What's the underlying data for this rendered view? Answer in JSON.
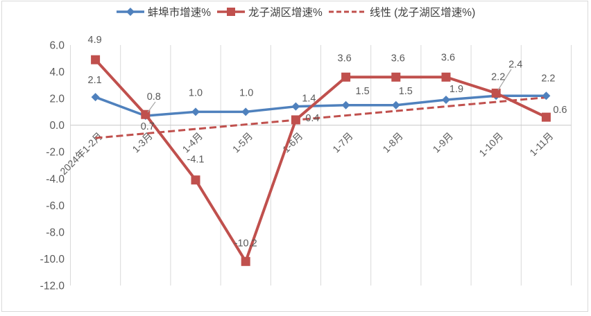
{
  "chart_data": {
    "type": "line",
    "title": "",
    "categories": [
      "2024年1-2月",
      "1-3月",
      "1-4月",
      "1-5月",
      "1-6月",
      "1-7月",
      "1-8月",
      "1-9月",
      "1-10月",
      "1-11月"
    ],
    "series": [
      {
        "name": "蚌埠市增速%",
        "color": "#4F81BD",
        "marker": "diamond",
        "values": [
          2.1,
          0.7,
          1.0,
          1.0,
          1.4,
          1.5,
          1.5,
          1.9,
          2.2,
          2.2
        ]
      },
      {
        "name": "龙子湖区增速%",
        "color": "#C0504D",
        "marker": "square",
        "values": [
          4.9,
          0.8,
          -4.1,
          -10.2,
          0.4,
          3.6,
          3.6,
          3.6,
          2.4,
          0.6
        ]
      }
    ],
    "trendline": {
      "name": "线性 (龙子湖区增速%)",
      "for_series": "龙子湖区增速%",
      "color": "#C0504D",
      "dashed": true,
      "y_start": -0.96,
      "y_end": 2.08
    },
    "yticks": [
      "6.0",
      "4.0",
      "2.0",
      "0.0",
      "-2.0",
      "-4.0",
      "-6.0",
      "-8.0",
      "-10.0",
      "-12.0"
    ],
    "ylim": [
      -12,
      6
    ],
    "ytick_step": 2,
    "xlabel": "",
    "ylabel": "",
    "grid": "vertical-only",
    "legend_position": "top",
    "label_decimals": 1,
    "colors": {
      "data_label": "#595959",
      "axis_label": "#595959",
      "gridline": "#d9d9d9",
      "zero_axis": "#c8c8c8",
      "leader_line": "#a6a6a6",
      "legend_text": "#3f3f3f",
      "frame_border": "#d9d9d9",
      "background": "#ffffff"
    }
  }
}
